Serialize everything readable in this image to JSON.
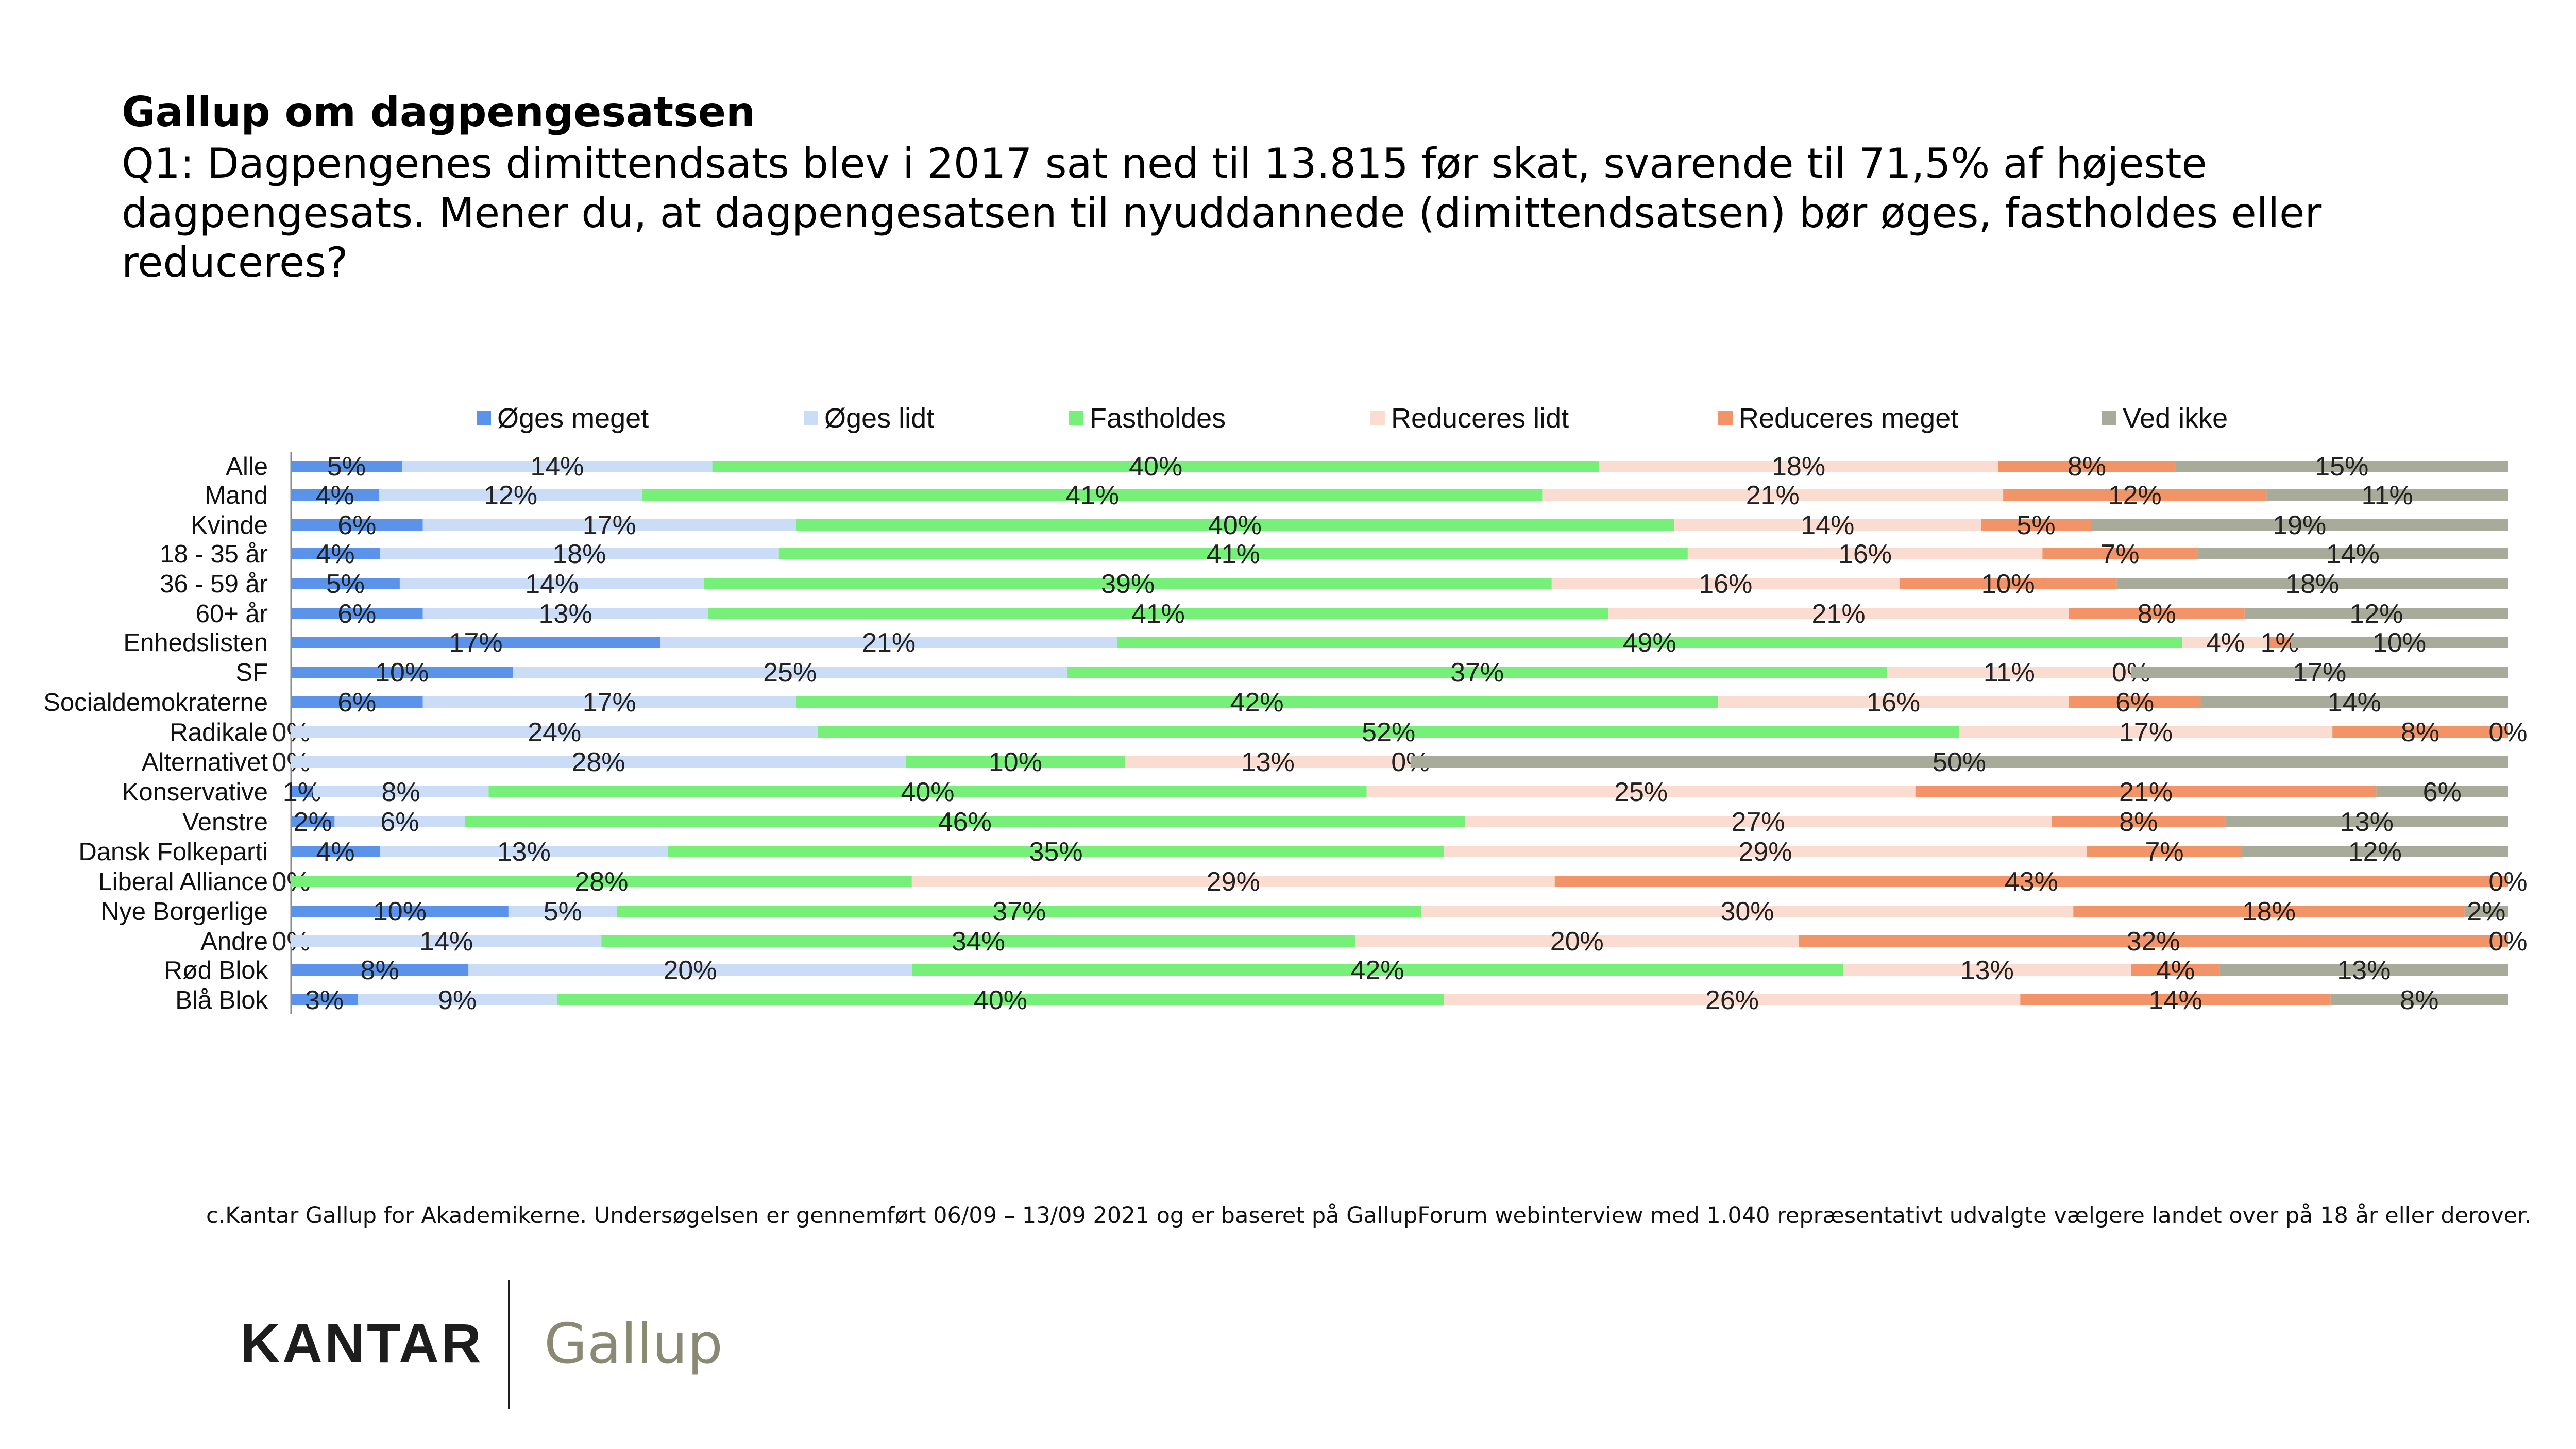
{
  "header": {
    "title": "Gallup om dagpengesatsen",
    "subtitle": "Q1: Dagpengenes dimittendsats blev i 2017 sat ned til 13.815 før skat, svarende til 71,5% af højeste dagpengesats. Mener du, at dagpengesatsen til nyuddannede (dimittendsatsen) bør øges, fastholdes eller reduceres?"
  },
  "chart_data": {
    "type": "bar",
    "orientation": "horizontal",
    "stacked": "100%",
    "legend_position": "top",
    "grid": false,
    "xlim": [
      0,
      100
    ],
    "categories": [
      "Alle",
      "Mand",
      "Kvinde",
      "18 - 35 år",
      "36 - 59 år",
      "60+ år",
      "Enhedslisten",
      "SF",
      "Socialdemokraterne",
      "Radikale",
      "Alternativet",
      "Konservative",
      "Venstre",
      "Dansk Folkeparti",
      "Liberal Alliance",
      "Nye Borgerlige",
      "Andre",
      "Rød Blok",
      "Blå Blok"
    ],
    "category_groups": [
      [
        0
      ],
      [
        1,
        2
      ],
      [
        3,
        4,
        5
      ],
      [
        6,
        7,
        8,
        9,
        10,
        11,
        12,
        13,
        14,
        15,
        16
      ],
      [
        17,
        18
      ]
    ],
    "series": [
      {
        "name": "Øges meget",
        "color": "#5b93ea",
        "values": [
          5,
          4,
          6,
          4,
          5,
          6,
          17,
          10,
          6,
          0,
          0,
          1,
          2,
          4,
          0,
          10,
          0,
          8,
          3
        ]
      },
      {
        "name": "Øges lidt",
        "color": "#cadcf6",
        "values": [
          14,
          12,
          17,
          18,
          14,
          13,
          21,
          25,
          17,
          24,
          28,
          8,
          6,
          13,
          0,
          5,
          14,
          20,
          9
        ]
      },
      {
        "name": "Fastholdes",
        "color": "#77f07a",
        "values": [
          40,
          41,
          40,
          41,
          39,
          41,
          49,
          37,
          42,
          52,
          10,
          40,
          46,
          35,
          28,
          37,
          34,
          42,
          40
        ]
      },
      {
        "name": "Reduceres lidt",
        "color": "#fbdcd0",
        "values": [
          18,
          21,
          14,
          16,
          16,
          21,
          4,
          11,
          16,
          17,
          13,
          25,
          27,
          29,
          29,
          30,
          20,
          13,
          26
        ]
      },
      {
        "name": "Reduceres meget",
        "color": "#f29467",
        "values": [
          8,
          12,
          5,
          7,
          10,
          8,
          1,
          0,
          6,
          8,
          0,
          21,
          8,
          7,
          43,
          18,
          32,
          4,
          14
        ]
      },
      {
        "name": "Ved ikke",
        "color": "#a8aa9a",
        "values": [
          15,
          11,
          19,
          14,
          18,
          12,
          10,
          17,
          14,
          0,
          50,
          6,
          13,
          12,
          0,
          2,
          0,
          13,
          8
        ]
      }
    ]
  },
  "footnote": "c.Kantar Gallup for Akademikerne. Undersøgelsen er gennemført 06/09 – 13/09 2021 og er baseret på GallupForum webinterview med 1.040 repræsentativt udvalgte vælgere landet over på 18 år eller derover.",
  "logo": {
    "kantar": "KANTAR",
    "gallup": "Gallup"
  }
}
